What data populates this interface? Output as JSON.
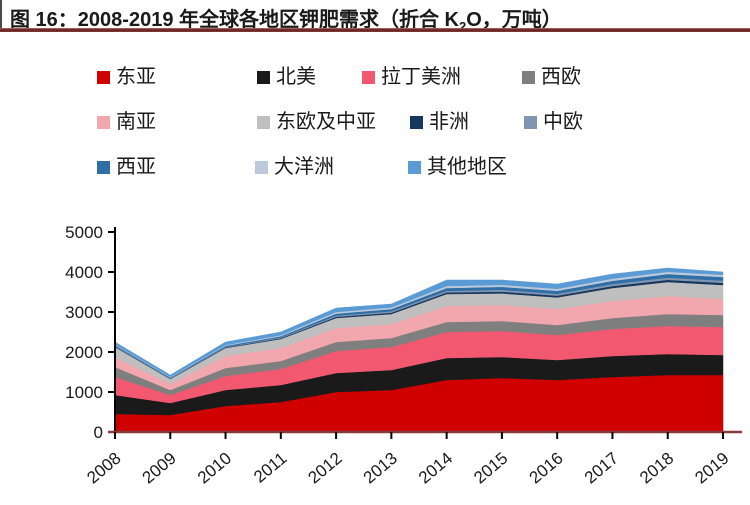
{
  "header": {
    "title_prefix": "图 16：2008-2019 年全球各地区钾肥需求（折合 K",
    "title_sub": "2",
    "title_suffix": "O，万吨）"
  },
  "chart_data": {
    "type": "area",
    "stacked": true,
    "title": "2008-2019 年全球各地区钾肥需求（折合 K2O，万吨）",
    "xlabel": "",
    "ylabel": "",
    "unit": "万吨 K2O",
    "x": [
      "2008",
      "2009",
      "2010",
      "2011",
      "2012",
      "2013",
      "2014",
      "2015",
      "2016",
      "2017",
      "2018",
      "2019"
    ],
    "ylim": [
      0,
      5000
    ],
    "y_ticks": [
      "0",
      "1000",
      "2000",
      "3000",
      "4000",
      "5000"
    ],
    "grid": false,
    "legend_position": "top",
    "axis_color_x": "#8a3a38",
    "axis_color_y": "#000000",
    "series": [
      {
        "id": "east-asia",
        "name": "东亚",
        "color": "#D00000",
        "values": [
          450,
          425,
          650,
          750,
          1000,
          1050,
          1300,
          1350,
          1300,
          1375,
          1425,
          1425
        ]
      },
      {
        "id": "north-america",
        "name": "北美",
        "color": "#1A1A1A",
        "values": [
          475,
          300,
          400,
          425,
          475,
          500,
          550,
          525,
          500,
          525,
          525,
          500
        ]
      },
      {
        "id": "latin-america",
        "name": "拉丁美洲",
        "color": "#F25971",
        "values": [
          450,
          200,
          350,
          400,
          550,
          575,
          650,
          650,
          625,
          675,
          700,
          700
        ]
      },
      {
        "id": "west-europe",
        "name": "西欧",
        "color": "#7F7F7F",
        "values": [
          250,
          125,
          200,
          200,
          225,
          225,
          250,
          250,
          250,
          275,
          300,
          300
        ]
      },
      {
        "id": "south-asia",
        "name": "南亚",
        "color": "#F2A6AE",
        "values": [
          250,
          150,
          300,
          325,
          350,
          350,
          400,
          400,
          400,
          425,
          450,
          400
        ]
      },
      {
        "id": "east-europe-central-asia",
        "name": "东欧及中亚",
        "color": "#BFBFBF",
        "values": [
          250,
          125,
          200,
          225,
          250,
          250,
          300,
          290,
          290,
          325,
          350,
          350
        ]
      },
      {
        "id": "africa",
        "name": "非洲",
        "color": "#17375E",
        "values": [
          15,
          10,
          15,
          20,
          30,
          35,
          40,
          45,
          45,
          50,
          55,
          55
        ]
      },
      {
        "id": "central-europe",
        "name": "中欧",
        "color": "#8095B2",
        "values": [
          15,
          10,
          15,
          20,
          30,
          35,
          40,
          45,
          45,
          50,
          55,
          55
        ]
      },
      {
        "id": "west-asia",
        "name": "西亚",
        "color": "#2F6FA6",
        "values": [
          20,
          15,
          25,
          30,
          50,
          55,
          70,
          75,
          75,
          80,
          90,
          90
        ]
      },
      {
        "id": "oceania",
        "name": "大洋洲",
        "color": "#BCC9DA",
        "values": [
          15,
          15,
          20,
          25,
          40,
          40,
          50,
          50,
          50,
          55,
          55,
          55
        ]
      },
      {
        "id": "others",
        "name": "其他地区",
        "color": "#5B9BD5",
        "values": [
          60,
          50,
          75,
          80,
          100,
          85,
          150,
          120,
          120,
          115,
          95,
          70
        ]
      }
    ]
  }
}
